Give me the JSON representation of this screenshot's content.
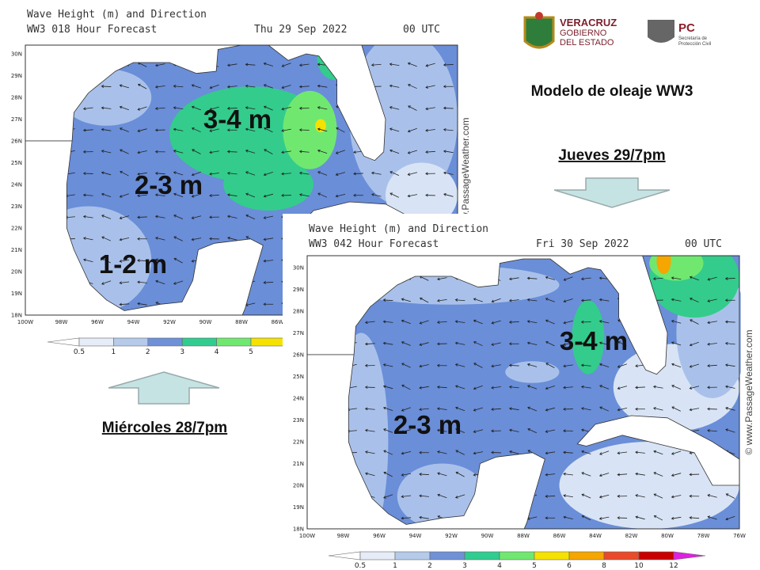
{
  "slide": {
    "title": "Modelo de oleaje WW3",
    "label_upper": "Jueves 29/7pm",
    "label_lower": "Miércoles 28/7pm",
    "logo_veracruz": [
      "VERACRUZ",
      "GOBIERNO",
      "DEL ESTADO"
    ],
    "logo_pc": [
      "PC",
      "Secretaría de",
      "Protección Civil"
    ]
  },
  "maps": [
    {
      "header_title": "Wave Height (m) and Direction",
      "header_forecast": "WW3 018 Hour Forecast",
      "header_date": "Thu 29 Sep 2022",
      "header_time": "00 UTC",
      "lat_labels": [
        "30N",
        "29N",
        "28N",
        "27N",
        "26N",
        "25N",
        "24N",
        "23N",
        "22N",
        "21N",
        "20N",
        "19N",
        "18N"
      ],
      "lon_labels": [
        "100W",
        "98W",
        "96W",
        "94W",
        "92W",
        "90W",
        "88W",
        "86W"
      ],
      "colorbar_labels": [
        0.5,
        1,
        2,
        3,
        4,
        5
      ],
      "region_labels": [
        "3-4 m",
        "2-3 m",
        "1-2 m"
      ],
      "watermark": "© www.PassageWeather.com"
    },
    {
      "header_title": "Wave Height (m) and Direction",
      "header_forecast": "WW3 042 Hour Forecast",
      "header_date": "Fri 30 Sep 2022",
      "header_time": "00 UTC",
      "lat_labels": [
        "30N",
        "29N",
        "28N",
        "27N",
        "26N",
        "25N",
        "24N",
        "23N",
        "22N",
        "21N",
        "20N",
        "19N",
        "18N"
      ],
      "lon_labels": [
        "100W",
        "98W",
        "96W",
        "94W",
        "92W",
        "90W",
        "88W",
        "86W",
        "84W",
        "82W",
        "80W",
        "78W",
        "76W"
      ],
      "colorbar_labels": [
        0.5,
        1,
        2,
        3,
        4,
        5,
        6,
        8,
        10,
        12
      ],
      "region_labels": [
        "3-4 m",
        "2-3 m"
      ],
      "watermark": "© www.PassageWeather.com"
    }
  ]
}
